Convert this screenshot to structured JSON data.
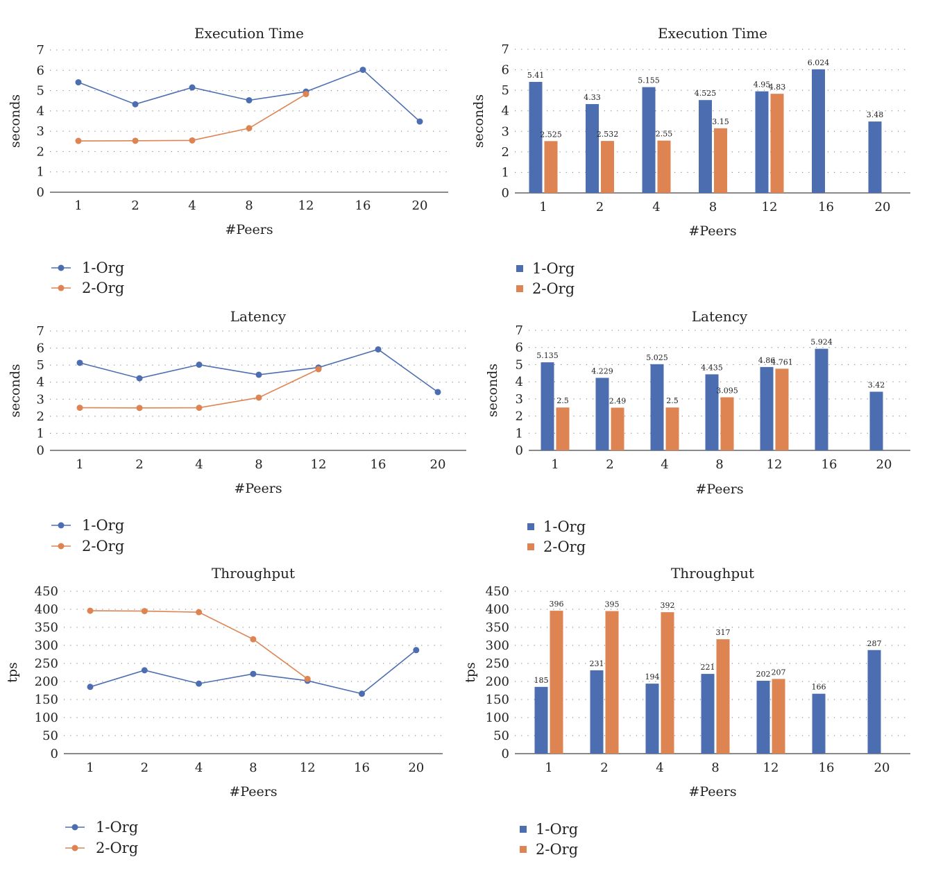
{
  "colors": {
    "series1": "#4C6EB1",
    "series2": "#DD8452"
  },
  "chart_data": [
    {
      "type": "line",
      "title": "Execution Time",
      "xlabel": "#Peers",
      "ylabel": "seconds",
      "categories": [
        "1",
        "2",
        "4",
        "8",
        "12",
        "16",
        "20"
      ],
      "ylim": [
        0,
        7
      ],
      "yticks": [
        "0",
        "1",
        "2",
        "3",
        "4",
        "5",
        "6",
        "7"
      ],
      "series": [
        {
          "name": "1-Org",
          "values": [
            5.41,
            4.33,
            5.155,
            4.525,
            4.95,
            6.024,
            3.48
          ]
        },
        {
          "name": "2-Org",
          "values": [
            2.525,
            2.532,
            2.55,
            3.15,
            4.83,
            null,
            null
          ]
        }
      ],
      "grid": true,
      "legend": "bottom-left"
    },
    {
      "type": "bar",
      "title": "Execution Time",
      "xlabel": "#Peers",
      "ylabel": "seconds",
      "categories": [
        "1",
        "2",
        "4",
        "8",
        "12",
        "16",
        "20"
      ],
      "ylim": [
        0,
        7
      ],
      "yticks": [
        "0",
        "1",
        "2",
        "3",
        "4",
        "5",
        "6",
        "7"
      ],
      "series": [
        {
          "name": "1-Org",
          "values": [
            5.41,
            4.33,
            5.155,
            4.525,
            4.95,
            6.024,
            3.48
          ],
          "labels": [
            "5.41",
            "4.33",
            "5.155",
            "4.525",
            "4.95",
            "6.024",
            "3.48"
          ]
        },
        {
          "name": "2-Org",
          "values": [
            2.525,
            2.532,
            2.55,
            3.15,
            4.83,
            null,
            null
          ],
          "labels": [
            "2.525",
            "2.532",
            "2.55",
            "3.15",
            "4.83",
            "",
            ""
          ]
        }
      ],
      "grid": true,
      "legend": "bottom-left"
    },
    {
      "type": "line",
      "title": "Latency",
      "xlabel": "#Peers",
      "ylabel": "seconds",
      "categories": [
        "1",
        "2",
        "4",
        "8",
        "12",
        "16",
        "20"
      ],
      "ylim": [
        0,
        7
      ],
      "yticks": [
        "0",
        "1",
        "2",
        "3",
        "4",
        "5",
        "6",
        "7"
      ],
      "series": [
        {
          "name": "1-Org",
          "values": [
            5.135,
            4.229,
            5.025,
            4.435,
            4.86,
            5.924,
            3.42
          ]
        },
        {
          "name": "2-Org",
          "values": [
            2.5,
            2.49,
            2.5,
            3.095,
            4.761,
            null,
            null
          ]
        }
      ],
      "grid": true,
      "legend": "bottom-left"
    },
    {
      "type": "bar",
      "title": "Latency",
      "xlabel": "#Peers",
      "ylabel": "seconds",
      "categories": [
        "1",
        "2",
        "4",
        "8",
        "12",
        "16",
        "20"
      ],
      "ylim": [
        0,
        7
      ],
      "yticks": [
        "0",
        "1",
        "2",
        "3",
        "4",
        "5",
        "6",
        "7"
      ],
      "series": [
        {
          "name": "1-Org",
          "values": [
            5.135,
            4.229,
            5.025,
            4.435,
            4.86,
            5.924,
            3.42
          ],
          "labels": [
            "5.135",
            "4.229",
            "5.025",
            "4.435",
            "4.86",
            "5.924",
            "3.42"
          ]
        },
        {
          "name": "2-Org",
          "values": [
            2.5,
            2.49,
            2.5,
            3.095,
            4.761,
            null,
            null
          ],
          "labels": [
            "2.5",
            "2.49",
            "2.5",
            "3.095",
            "4.761",
            "",
            ""
          ]
        }
      ],
      "grid": true,
      "legend": "bottom-left"
    },
    {
      "type": "line",
      "title": "Throughput",
      "xlabel": "#Peers",
      "ylabel": "tps",
      "categories": [
        "1",
        "2",
        "4",
        "8",
        "12",
        "16",
        "20"
      ],
      "ylim": [
        0,
        450
      ],
      "yticks": [
        "0",
        "50",
        "100",
        "150",
        "200",
        "250",
        "300",
        "350",
        "400",
        "450"
      ],
      "series": [
        {
          "name": "1-Org",
          "values": [
            185,
            231,
            194,
            221,
            202,
            166,
            287
          ]
        },
        {
          "name": "2-Org",
          "values": [
            396,
            395,
            392,
            317,
            207,
            null,
            null
          ]
        }
      ],
      "grid": true,
      "legend": "bottom-left"
    },
    {
      "type": "bar",
      "title": "Throughput",
      "xlabel": "#Peers",
      "ylabel": "tps",
      "categories": [
        "1",
        "2",
        "4",
        "8",
        "12",
        "16",
        "20"
      ],
      "ylim": [
        0,
        450
      ],
      "yticks": [
        "0",
        "50",
        "100",
        "150",
        "200",
        "250",
        "300",
        "350",
        "400",
        "450"
      ],
      "series": [
        {
          "name": "1-Org",
          "values": [
            185,
            231,
            194,
            221,
            202,
            166,
            287
          ],
          "labels": [
            "185",
            "231",
            "194",
            "221",
            "202",
            "166",
            "287"
          ]
        },
        {
          "name": "2-Org",
          "values": [
            396,
            395,
            392,
            317,
            207,
            null,
            null
          ],
          "labels": [
            "396",
            "395",
            "392",
            "317",
            "207",
            "",
            ""
          ]
        }
      ],
      "grid": true,
      "legend": "bottom-left"
    }
  ]
}
